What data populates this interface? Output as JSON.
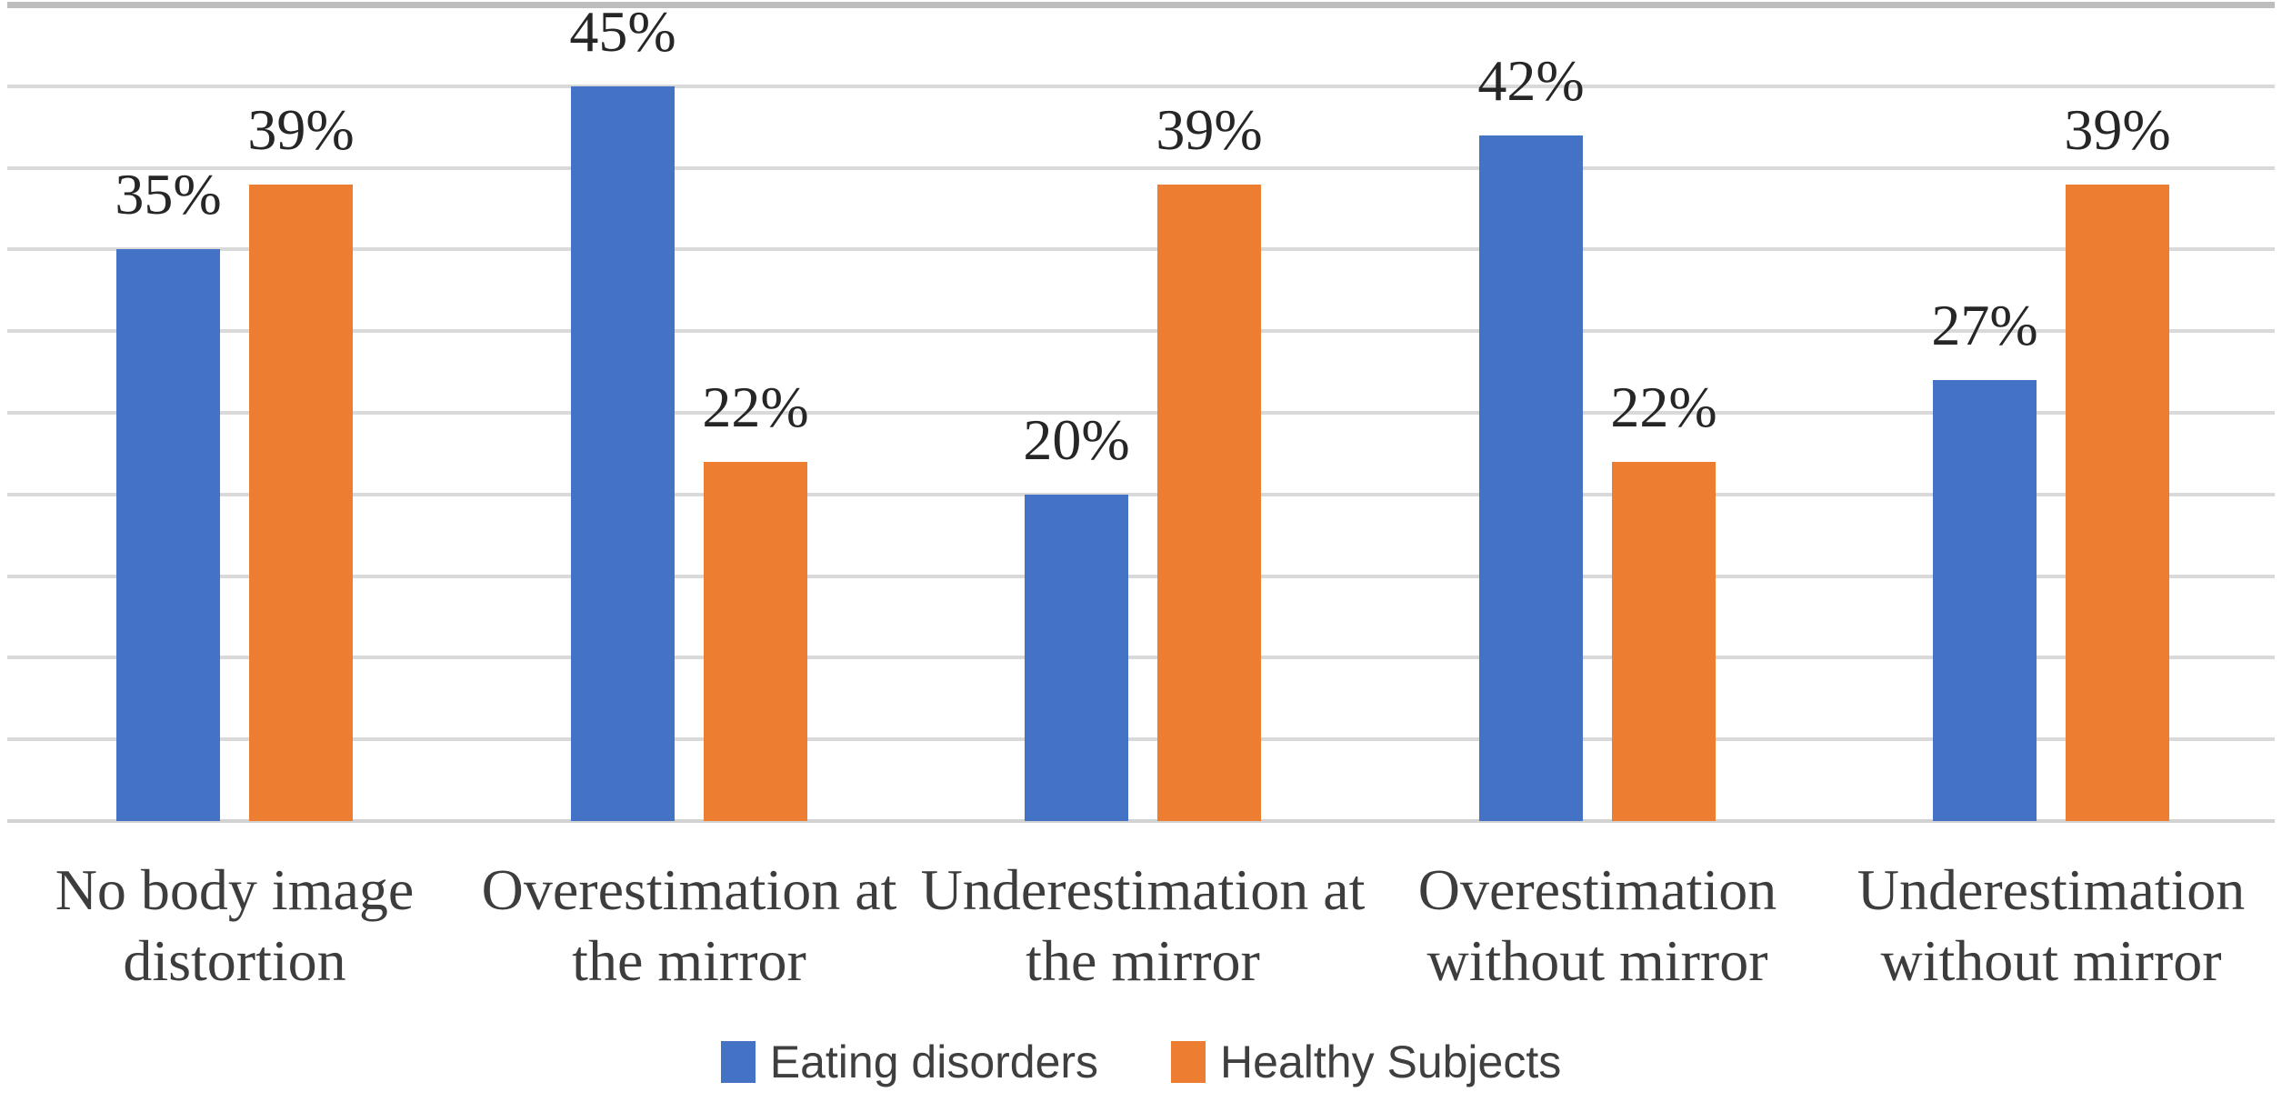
{
  "chart_data": {
    "type": "bar",
    "title": "",
    "xlabel": "",
    "ylabel": "",
    "categories": [
      "No body image distortion",
      "Overestimation at the mirror",
      "Underestimation at the mirror",
      "Overestimation without mirror",
      "Underestimation without mirror"
    ],
    "category_lines": [
      [
        "No body image",
        "distortion"
      ],
      [
        "Overestimation at",
        "the mirror"
      ],
      [
        "Underestimation at",
        "the mirror"
      ],
      [
        "Overestimation",
        "without mirror"
      ],
      [
        "Underestimation",
        "without mirror"
      ]
    ],
    "series": [
      {
        "name": "Eating disorders",
        "color": "#4472C4",
        "values": [
          35,
          45,
          20,
          42,
          27
        ]
      },
      {
        "name": "Healthy Subjects",
        "color": "#ED7D31",
        "values": [
          39,
          22,
          39,
          22,
          39
        ]
      }
    ],
    "data_labels": [
      [
        "35%",
        "45%",
        "20%",
        "42%",
        "27%"
      ],
      [
        "39%",
        "22%",
        "39%",
        "22%",
        "39%"
      ]
    ],
    "ylim": [
      0,
      50
    ],
    "grid_step": 5,
    "grid": true,
    "gridline_color": "#d9d9d9",
    "legend_position": "bottom",
    "y_axis_labels_visible": false
  }
}
